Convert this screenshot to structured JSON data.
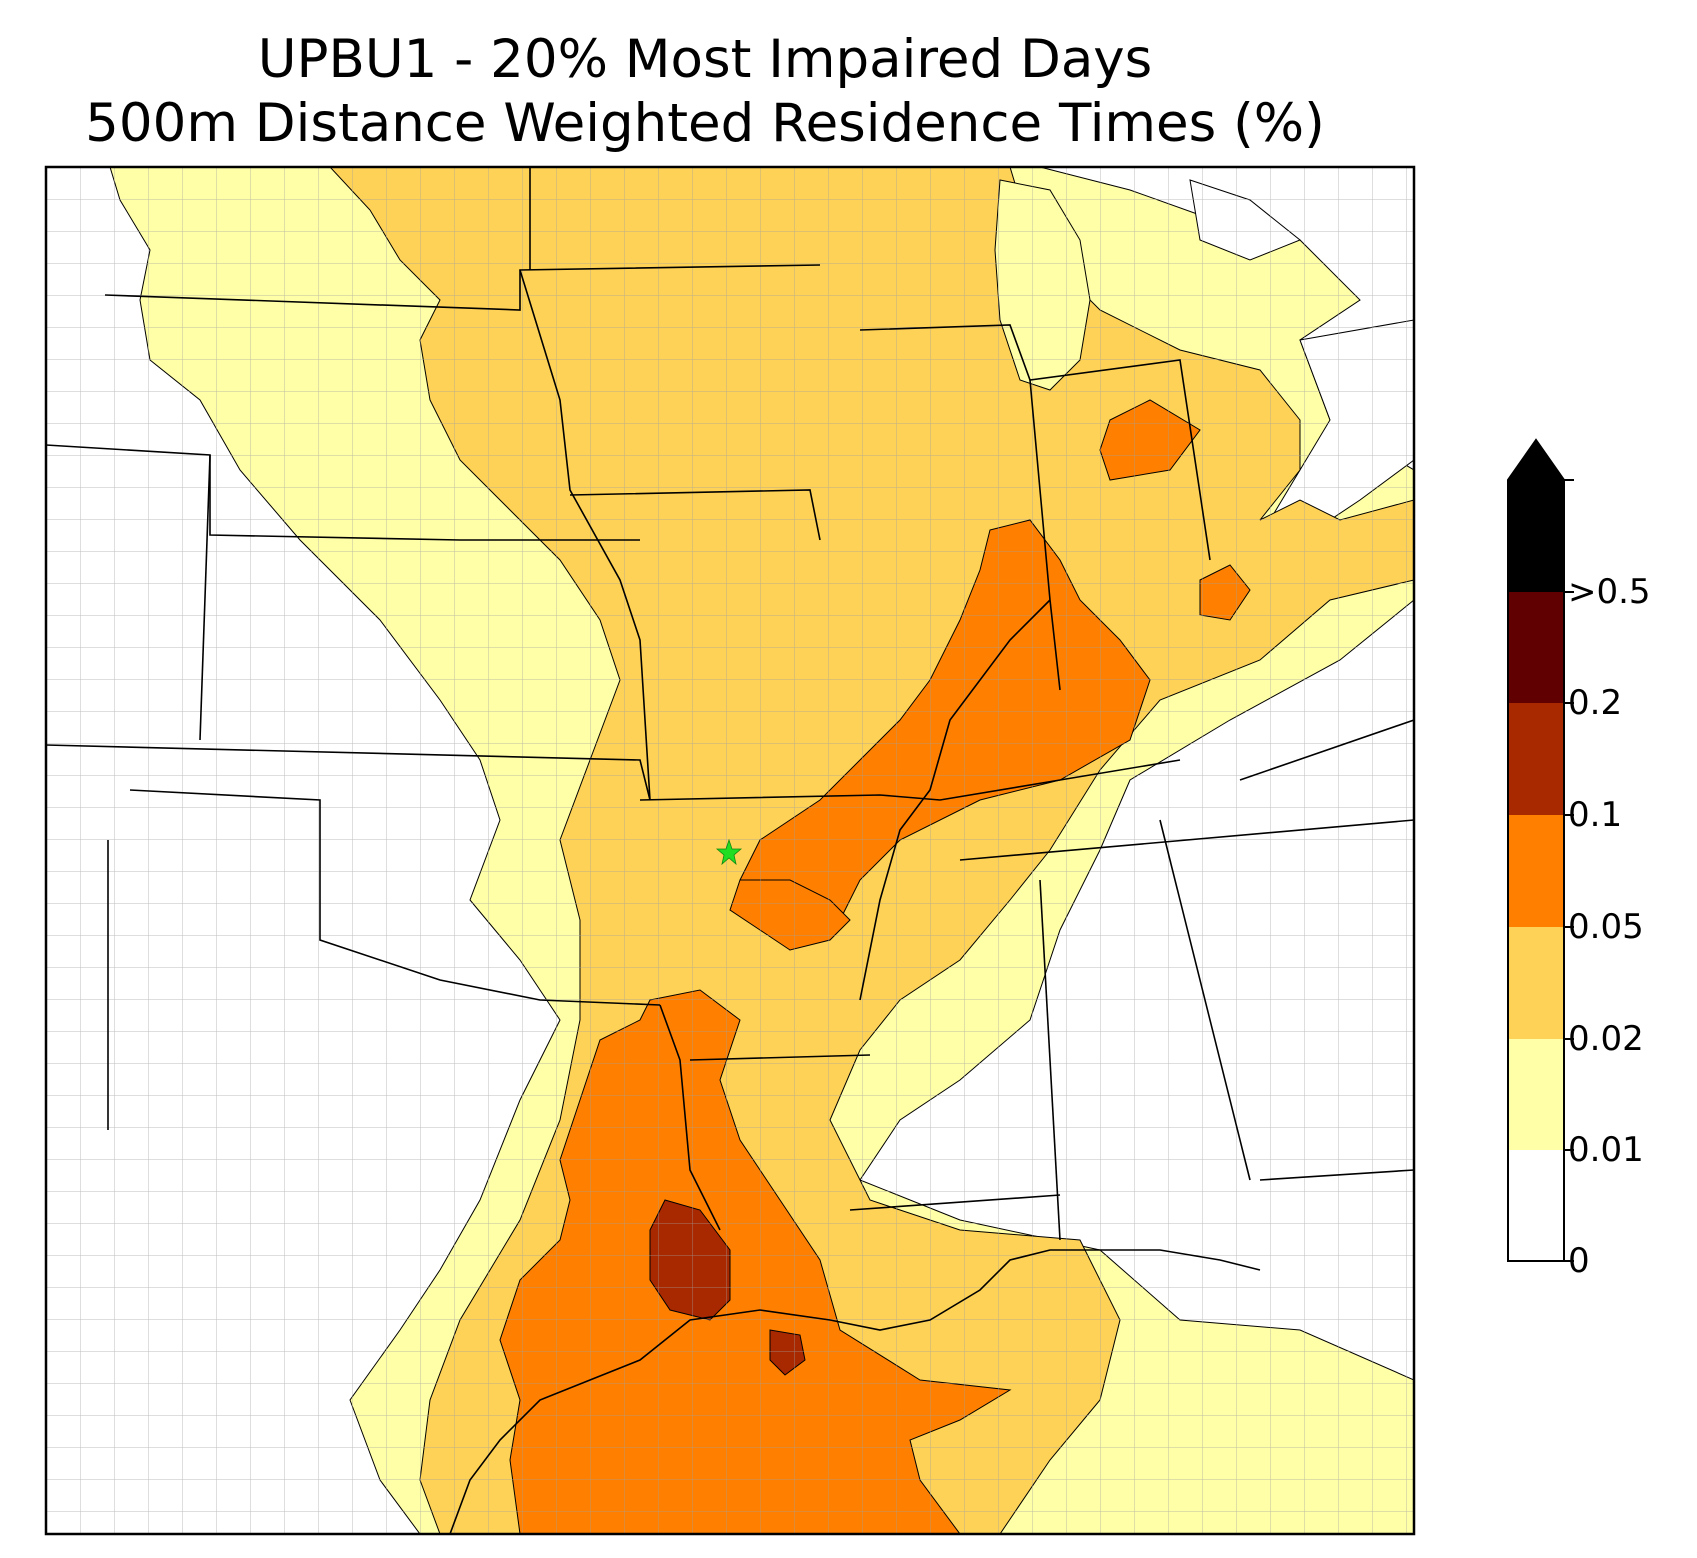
{
  "title": {
    "line1": "UPBU1 - 20% Most Impaired Days",
    "line2": "500m Distance Weighted Residence Times (%)"
  },
  "colorbar": {
    "labels": [
      "0",
      "0.01",
      "0.02",
      "0.05",
      "0.1",
      "0.2",
      ">0.5"
    ],
    "bins": [
      {
        "from": "0",
        "to": "0.01",
        "color": "#ffffff"
      },
      {
        "from": "0.01",
        "to": "0.02",
        "color": "#ffffa8"
      },
      {
        "from": "0.02",
        "to": "0.05",
        "color": "#fed256"
      },
      {
        "from": "0.05",
        "to": "0.1",
        "color": "#ff8000"
      },
      {
        "from": "0.1",
        "to": "0.2",
        "color": "#a82800"
      },
      {
        "from": "0.2",
        "to": "0.5",
        "color": "#600000"
      },
      {
        "from": ">0.5",
        "to": "",
        "color": "#000000"
      }
    ],
    "extend": "max"
  },
  "marker": {
    "symbol": "star",
    "color": "#22dd22"
  },
  "colors": {
    "state_border": "#000000",
    "county_border": "#a0a0a0"
  }
}
